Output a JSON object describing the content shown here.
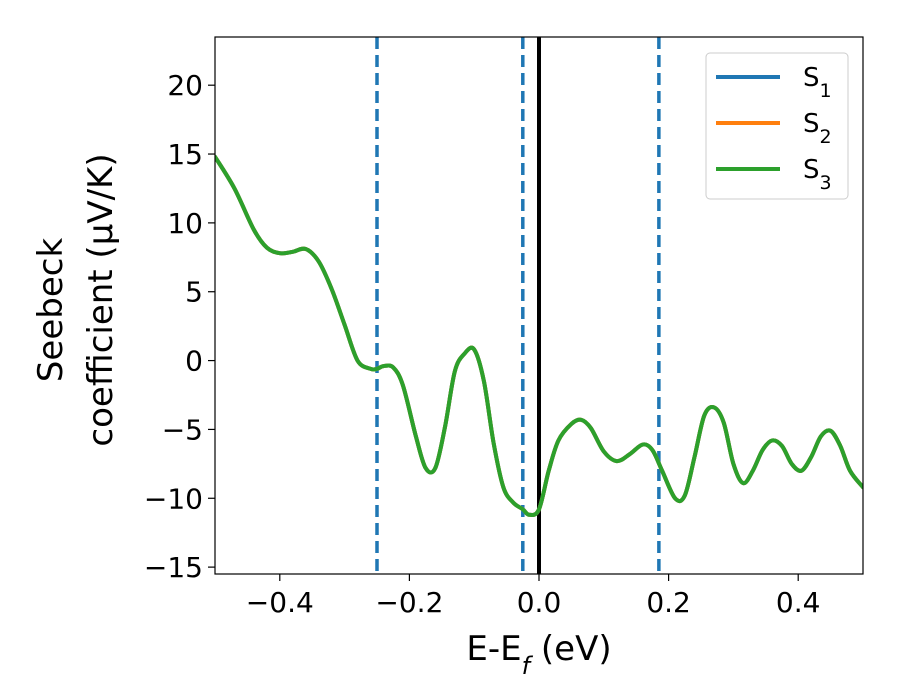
{
  "chart_data": {
    "type": "line",
    "title": "",
    "xlabel": {
      "main": "E-E",
      "sub": "f",
      "suffix": " (eV)"
    },
    "ylabel": {
      "line1": "Seebeck",
      "line2": "coefficient  (μV/K)"
    },
    "xlim": [
      -0.5,
      0.5
    ],
    "ylim": [
      -15.5,
      23.5
    ],
    "xticks": [
      -0.4,
      -0.2,
      0.0,
      0.2,
      0.4
    ],
    "xtick_labels": [
      "−0.4",
      "−0.2",
      "0.0",
      "0.2",
      "0.4"
    ],
    "yticks": [
      -15,
      -10,
      -5,
      0,
      5,
      10,
      15,
      20
    ],
    "ytick_labels": [
      "−15",
      "−10",
      "−5",
      "0",
      "5",
      "10",
      "15",
      "20"
    ],
    "legend_position": "top-right",
    "fermi_line": {
      "x": 0.0,
      "color": "#000000"
    },
    "vlines": [
      {
        "x": -0.25,
        "color": "#1f77b4",
        "style": "dashed"
      },
      {
        "x": -0.025,
        "color": "#1f77b4",
        "style": "dashed"
      },
      {
        "x": 0.185,
        "color": "#1f77b4",
        "style": "dashed"
      }
    ],
    "x": [
      -0.5,
      -0.47,
      -0.44,
      -0.42,
      -0.4,
      -0.38,
      -0.36,
      -0.34,
      -0.32,
      -0.3,
      -0.28,
      -0.26,
      -0.25,
      -0.24,
      -0.225,
      -0.21,
      -0.19,
      -0.175,
      -0.16,
      -0.145,
      -0.13,
      -0.115,
      -0.1,
      -0.085,
      -0.07,
      -0.055,
      -0.04,
      -0.025,
      -0.015,
      0.0,
      0.015,
      0.03,
      0.05,
      0.065,
      0.08,
      0.1,
      0.12,
      0.14,
      0.16,
      0.175,
      0.19,
      0.21,
      0.225,
      0.24,
      0.255,
      0.27,
      0.285,
      0.3,
      0.315,
      0.33,
      0.345,
      0.36,
      0.375,
      0.39,
      0.405,
      0.42,
      0.435,
      0.45,
      0.465,
      0.48,
      0.5
    ],
    "series": [
      {
        "name": "S",
        "sub": "1",
        "color": "#1f77b4",
        "values": [
          14.8,
          12.5,
          9.5,
          8.2,
          7.8,
          7.9,
          8.1,
          7.2,
          5.2,
          2.6,
          0.0,
          -0.6,
          -0.6,
          -0.4,
          -0.5,
          -1.8,
          -5.5,
          -7.8,
          -7.8,
          -4.8,
          -0.8,
          0.5,
          0.8,
          -1.5,
          -6.0,
          -9.2,
          -10.3,
          -10.8,
          -11.2,
          -10.8,
          -8.0,
          -5.8,
          -4.6,
          -4.3,
          -4.9,
          -6.6,
          -7.3,
          -6.8,
          -6.1,
          -6.5,
          -8.0,
          -10.0,
          -9.8,
          -7.0,
          -4.0,
          -3.4,
          -4.5,
          -7.5,
          -8.9,
          -8.0,
          -6.5,
          -5.8,
          -6.2,
          -7.5,
          -8.0,
          -7.0,
          -5.5,
          -5.1,
          -6.2,
          -8.0,
          -9.2
        ]
      },
      {
        "name": "S",
        "sub": "2",
        "color": "#ff7f0e",
        "values": [
          14.8,
          12.5,
          9.5,
          8.2,
          7.8,
          7.9,
          8.1,
          7.2,
          5.2,
          2.6,
          0.0,
          -0.6,
          -0.6,
          -0.4,
          -0.5,
          -1.8,
          -5.5,
          -7.8,
          -7.8,
          -4.8,
          -0.8,
          0.5,
          0.8,
          -1.5,
          -6.0,
          -9.2,
          -10.3,
          -10.8,
          -11.2,
          -10.8,
          -8.0,
          -5.8,
          -4.6,
          -4.3,
          -4.9,
          -6.6,
          -7.3,
          -6.8,
          -6.1,
          -6.5,
          -8.0,
          -10.0,
          -9.8,
          -7.0,
          -4.0,
          -3.4,
          -4.5,
          -7.5,
          -8.9,
          -8.0,
          -6.5,
          -5.8,
          -6.2,
          -7.5,
          -8.0,
          -7.0,
          -5.5,
          -5.1,
          -6.2,
          -8.0,
          -9.2
        ]
      },
      {
        "name": "S",
        "sub": "3",
        "color": "#2ca02c",
        "values": [
          14.8,
          12.5,
          9.5,
          8.2,
          7.8,
          7.9,
          8.1,
          7.2,
          5.2,
          2.6,
          0.0,
          -0.6,
          -0.6,
          -0.4,
          -0.5,
          -1.8,
          -5.5,
          -7.8,
          -7.8,
          -4.8,
          -0.8,
          0.5,
          0.8,
          -1.5,
          -6.0,
          -9.2,
          -10.3,
          -10.8,
          -11.2,
          -10.8,
          -8.0,
          -5.8,
          -4.6,
          -4.3,
          -4.9,
          -6.6,
          -7.3,
          -6.8,
          -6.1,
          -6.5,
          -8.0,
          -10.0,
          -9.8,
          -7.0,
          -4.0,
          -3.4,
          -4.5,
          -7.5,
          -8.9,
          -8.0,
          -6.5,
          -5.8,
          -6.2,
          -7.5,
          -8.0,
          -7.0,
          -5.5,
          -5.1,
          -6.2,
          -8.0,
          -9.2
        ]
      }
    ]
  }
}
